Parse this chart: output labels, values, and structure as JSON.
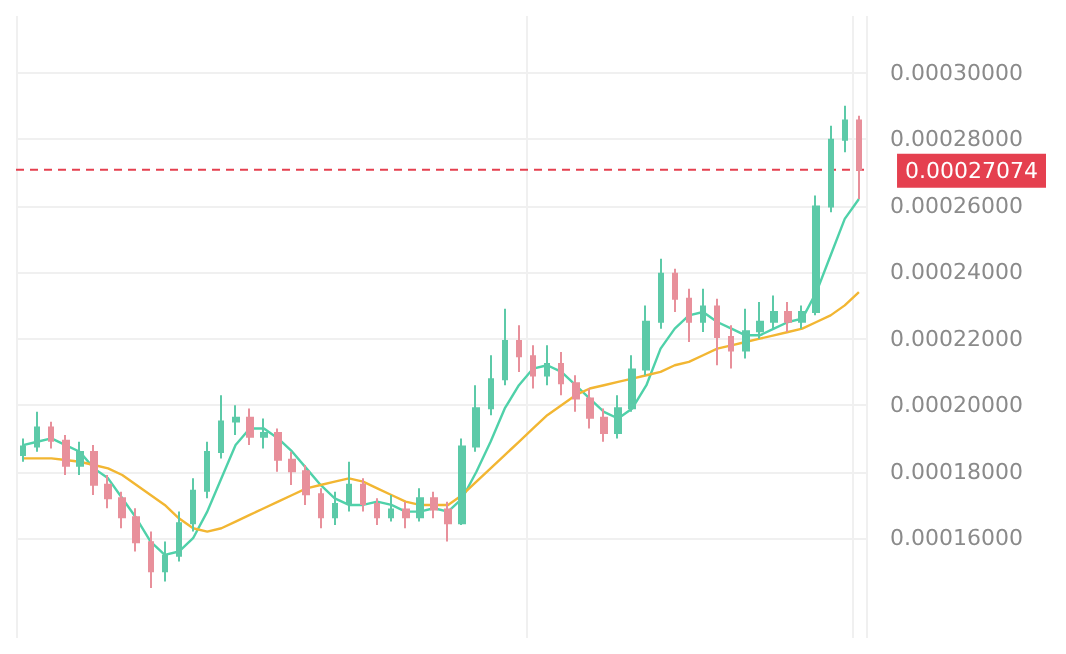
{
  "chart_data": {
    "type": "candlestick",
    "categories": [
      null,
      null,
      null,
      null,
      null,
      null,
      null,
      null,
      null,
      null,
      null,
      null,
      null,
      null,
      null,
      null,
      null,
      null,
      null,
      null,
      null,
      null,
      null,
      null,
      null,
      null,
      null,
      null,
      null,
      null,
      null,
      null,
      null,
      null,
      null,
      null,
      null,
      null,
      null,
      null,
      null,
      null,
      null,
      null,
      null,
      null,
      null,
      null,
      null,
      null,
      null,
      null,
      null,
      null,
      null,
      null,
      null,
      null,
      null,
      null
    ],
    "ohlc": [
      [
        0.000185,
        0.00019,
        0.000183,
        0.0001876
      ],
      [
        0.0001876,
        0.000198,
        0.000186,
        0.0001933
      ],
      [
        0.0001933,
        0.000195,
        0.000187,
        0.0001893
      ],
      [
        0.0001893,
        0.000191,
        0.000179,
        0.0001818
      ],
      [
        0.0001818,
        0.000189,
        0.000179,
        0.0001859
      ],
      [
        0.0001859,
        0.000188,
        0.000173,
        0.0001761
      ],
      [
        0.0001761,
        0.000179,
        0.000169,
        0.000172
      ],
      [
        0.000172,
        0.000174,
        0.000163,
        0.0001663
      ],
      [
        0.0001663,
        0.000169,
        0.000156,
        0.0001588
      ],
      [
        0.0001588,
        0.000162,
        0.000145,
        0.0001501
      ],
      [
        0.0001501,
        0.000159,
        0.000147,
        0.0001547
      ],
      [
        0.0001547,
        0.000168,
        0.000153,
        0.0001645
      ],
      [
        0.0001645,
        0.000178,
        0.000162,
        0.0001743
      ],
      [
        0.0001743,
        0.000189,
        0.000172,
        0.0001859
      ],
      [
        0.0001859,
        0.000203,
        0.000184,
        0.0001951
      ],
      [
        0.0001951,
        0.0002,
        0.000191,
        0.0001962
      ],
      [
        0.0001962,
        0.000199,
        0.000188,
        0.0001905
      ],
      [
        0.0001905,
        0.000196,
        0.000187,
        0.0001916
      ],
      [
        0.0001916,
        0.000193,
        0.00018,
        0.0001836
      ],
      [
        0.0001836,
        0.000186,
        0.000176,
        0.0001801
      ],
      [
        0.0001801,
        0.000182,
        0.00017,
        0.0001732
      ],
      [
        0.0001732,
        0.000175,
        0.000163,
        0.0001663
      ],
      [
        0.0001663,
        0.000174,
        0.000164,
        0.0001703
      ],
      [
        0.0001703,
        0.000183,
        0.000168,
        0.0001761
      ],
      [
        0.0001761,
        0.000178,
        0.000168,
        0.0001703
      ],
      [
        0.0001703,
        0.000172,
        0.000164,
        0.0001663
      ],
      [
        0.0001663,
        0.000173,
        0.000165,
        0.0001686
      ],
      [
        0.0001686,
        0.000171,
        0.000163,
        0.0001663
      ],
      [
        0.0001663,
        0.000175,
        0.000165,
        0.000172
      ],
      [
        0.000172,
        0.000174,
        0.000166,
        0.0001686
      ],
      [
        0.0001686,
        0.000171,
        0.000159,
        0.0001645
      ],
      [
        0.0001645,
        0.00019,
        0.000164,
        0.0001876
      ],
      [
        0.0001876,
        0.000206,
        0.000186,
        0.0001991
      ],
      [
        0.0001991,
        0.000215,
        0.000197,
        0.0002078
      ],
      [
        0.0002078,
        0.000229,
        0.000206,
        0.0002193
      ],
      [
        0.0002193,
        0.000224,
        0.00021,
        0.0002147
      ],
      [
        0.0002147,
        0.000218,
        0.000205,
        0.0002089
      ],
      [
        0.0002089,
        0.000218,
        0.000206,
        0.0002124
      ],
      [
        0.0002124,
        0.000216,
        0.000203,
        0.0002066
      ],
      [
        0.0002066,
        0.000209,
        0.000198,
        0.000202
      ],
      [
        0.000202,
        0.000205,
        0.000193,
        0.0001962
      ],
      [
        0.0001962,
        0.000199,
        0.000189,
        0.0001916
      ],
      [
        0.0001916,
        0.000203,
        0.00019,
        0.0001991
      ],
      [
        0.0001991,
        0.000215,
        0.000198,
        0.0002107
      ],
      [
        0.0002107,
        0.00023,
        0.000209,
        0.0002251
      ],
      [
        0.0002251,
        0.000244,
        0.000223,
        0.0002395
      ],
      [
        0.0002395,
        0.000241,
        0.000228,
        0.000232
      ],
      [
        0.000232,
        0.000235,
        0.000219,
        0.0002251
      ],
      [
        0.0002251,
        0.000235,
        0.000222,
        0.0002297
      ],
      [
        0.0002297,
        0.000232,
        0.000212,
        0.0002205
      ],
      [
        0.0002205,
        0.000224,
        0.000211,
        0.0002164
      ],
      [
        0.0002164,
        0.000229,
        0.000214,
        0.0002222
      ],
      [
        0.0002222,
        0.000231,
        0.00022,
        0.0002251
      ],
      [
        0.0002251,
        0.000233,
        0.000223,
        0.000228
      ],
      [
        0.000228,
        0.000231,
        0.000222,
        0.0002251
      ],
      [
        0.0002251,
        0.00023,
        0.000223,
        0.000228
      ],
      [
        0.000228,
        0.000263,
        0.000227,
        0.0002597
      ],
      [
        0.0002597,
        0.000284,
        0.000258,
        0.0002798
      ],
      [
        0.0002798,
        0.00029,
        0.000276,
        0.0002856
      ],
      [
        0.0002856,
        0.000287,
        0.000262,
        0.00027074
      ]
    ],
    "colors": [
      "#5ccaa8",
      "#5ccaa8",
      "#e8909b",
      "#e8909b",
      "#5ccaa8",
      "#e8909b",
      "#e8909b",
      "#e8909b",
      "#e8909b",
      "#e8909b",
      "#5ccaa8",
      "#5ccaa8",
      "#5ccaa8",
      "#5ccaa8",
      "#5ccaa8",
      "#5ccaa8",
      "#e8909b",
      "#5ccaa8",
      "#e8909b",
      "#e8909b",
      "#e8909b",
      "#e8909b",
      "#5ccaa8",
      "#5ccaa8",
      "#e8909b",
      "#e8909b",
      "#5ccaa8",
      "#e8909b",
      "#5ccaa8",
      "#e8909b",
      "#e8909b",
      "#5ccaa8",
      "#5ccaa8",
      "#5ccaa8",
      "#5ccaa8",
      "#e8909b",
      "#e8909b",
      "#5ccaa8",
      "#e8909b",
      "#e8909b",
      "#e8909b",
      "#e8909b",
      "#5ccaa8",
      "#5ccaa8",
      "#5ccaa8",
      "#5ccaa8",
      "#e8909b",
      "#e8909b",
      "#5ccaa8",
      "#e8909b",
      "#e8909b",
      "#5ccaa8",
      "#5ccaa8",
      "#5ccaa8",
      "#e8909b",
      "#5ccaa8",
      "#5ccaa8",
      "#5ccaa8",
      "#5ccaa8",
      "#e8909b"
    ],
    "series": [
      {
        "type": "line",
        "color": "#4fd1a9",
        "values": [
          0.000188,
          0.000189,
          0.00019,
          0.000188,
          0.000186,
          0.000181,
          0.000178,
          0.000172,
          0.000166,
          0.000159,
          0.000155,
          0.000156,
          0.00016,
          0.000168,
          0.000178,
          0.000188,
          0.000193,
          0.000193,
          0.00019,
          0.000186,
          0.000181,
          0.000176,
          0.000172,
          0.00017,
          0.00017,
          0.000171,
          0.00017,
          0.000168,
          0.000168,
          0.000169,
          0.000168,
          0.000172,
          0.00018,
          0.000189,
          0.000199,
          0.000206,
          0.000211,
          0.000212,
          0.00021,
          0.000206,
          0.000202,
          0.000198,
          0.000196,
          0.000199,
          0.000206,
          0.000217,
          0.000223,
          0.000227,
          0.000228,
          0.000225,
          0.000223,
          0.000221,
          0.000221,
          0.000223,
          0.000225,
          0.000226,
          0.000234,
          0.000245,
          0.000256,
          0.000262
        ]
      },
      {
        "type": "line",
        "color": "#f2b632",
        "values": [
          0.000184,
          0.000184,
          0.000184,
          0.0001835,
          0.000183,
          0.000182,
          0.000181,
          0.000179,
          0.000176,
          0.000173,
          0.00017,
          0.000166,
          0.000163,
          0.000162,
          0.000163,
          0.000165,
          0.000167,
          0.000169,
          0.000171,
          0.000173,
          0.000175,
          0.000176,
          0.000177,
          0.000178,
          0.000177,
          0.000175,
          0.000173,
          0.000171,
          0.00017,
          0.00017,
          0.00017,
          0.000173,
          0.000177,
          0.000181,
          0.000185,
          0.000189,
          0.000193,
          0.000197,
          0.0002,
          0.000203,
          0.000205,
          0.000206,
          0.000207,
          0.000208,
          0.000209,
          0.00021,
          0.000212,
          0.000213,
          0.000215,
          0.000217,
          0.000218,
          0.000219,
          0.00022,
          0.000221,
          0.000222,
          0.000223,
          0.000225,
          0.000227,
          0.00023,
          0.000234
        ]
      }
    ],
    "ref_lines": [
      {
        "axis": "y",
        "value": 0.00027074,
        "label": "0.00027074",
        "color": "#e5404f",
        "line_style": "dashed"
      }
    ],
    "ylim": [
      0.00013,
      0.000317
    ],
    "yticks": [
      {
        "value": 0.00016,
        "label": "0.00016000"
      },
      {
        "value": 0.00018,
        "label": "0.00018000"
      },
      {
        "value": 0.0002,
        "label": "0.00020000"
      },
      {
        "value": 0.00022,
        "label": "0.00022000"
      },
      {
        "value": 0.00024,
        "label": "0.00024000"
      },
      {
        "value": 0.00026,
        "label": "0.00026000"
      },
      {
        "value": 0.00028,
        "label": "0.00028000"
      },
      {
        "value": 0.0003,
        "label": "0.00030000"
      }
    ],
    "grid": true,
    "tick_labels": "y"
  }
}
